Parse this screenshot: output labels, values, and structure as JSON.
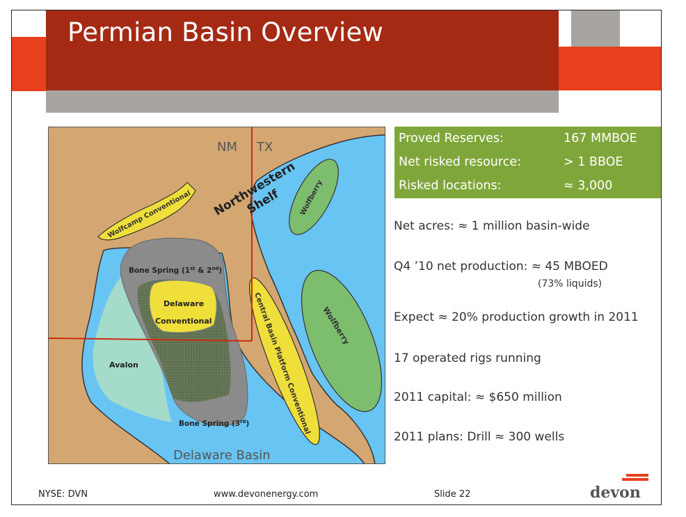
{
  "slide": {
    "title": "Permian Basin Overview",
    "number_label": "Slide 22"
  },
  "stats": [
    {
      "label": "Proved Reserves:",
      "value": "167 MMBOE"
    },
    {
      "label": "Net risked resource:",
      "value": "> 1 BBOE"
    },
    {
      "label": "Risked locations:",
      "value": "≈ 3,000"
    }
  ],
  "bullets": {
    "net_acres": "Net acres: ≈ 1 million basin-wide",
    "production": "Q4 ’10 net production: ≈ 45 MBOED",
    "production_note": "(73% liquids)",
    "growth": "Expect ≈ 20% production growth in 2011",
    "rigs": "17 operated rigs running",
    "capital": "2011 capital: ≈ $650 million",
    "plans": "2011 plans: Drill ≈ 300 wells"
  },
  "map": {
    "state_left": "NM",
    "state_right": "TX",
    "shelf_line1": "Northwestern",
    "shelf_line2": "Shelf",
    "wolfcamp": "Wolfcamp Conventional",
    "wolfberry_top": "Wolfberry",
    "wolfberry_right": "Wolfberry",
    "bone_spring_upper": "Bone Spring (1",
    "bone_spring_upper_sup1": "st",
    "bone_spring_upper_amp": " & 2",
    "bone_spring_upper_sup2": "nd",
    "bone_spring_upper_close": ")",
    "delaware_conv_line1": "Delaware",
    "delaware_conv_line2": "Conventional",
    "avalon": "Avalon",
    "central_basin": "Central Basin Platform Conventional",
    "bone_spring_lower": "Bone Spring (3",
    "bone_spring_lower_sup": "rd",
    "bone_spring_lower_close": ")",
    "delaware_basin": "Delaware Basin"
  },
  "footer": {
    "ticker": "NYSE: DVN",
    "website": "www.devonenergy.com",
    "logo": "devon"
  },
  "colors": {
    "title_bar": "#a52a14",
    "accent_red": "#e8401c",
    "accent_gray": "#a8a5a0",
    "stats_green": "#7fa63a",
    "map_land": "#d4a772",
    "map_water": "#68c4f2",
    "play_yellow": "#f0df3a",
    "play_green": "#7dbd6e"
  }
}
